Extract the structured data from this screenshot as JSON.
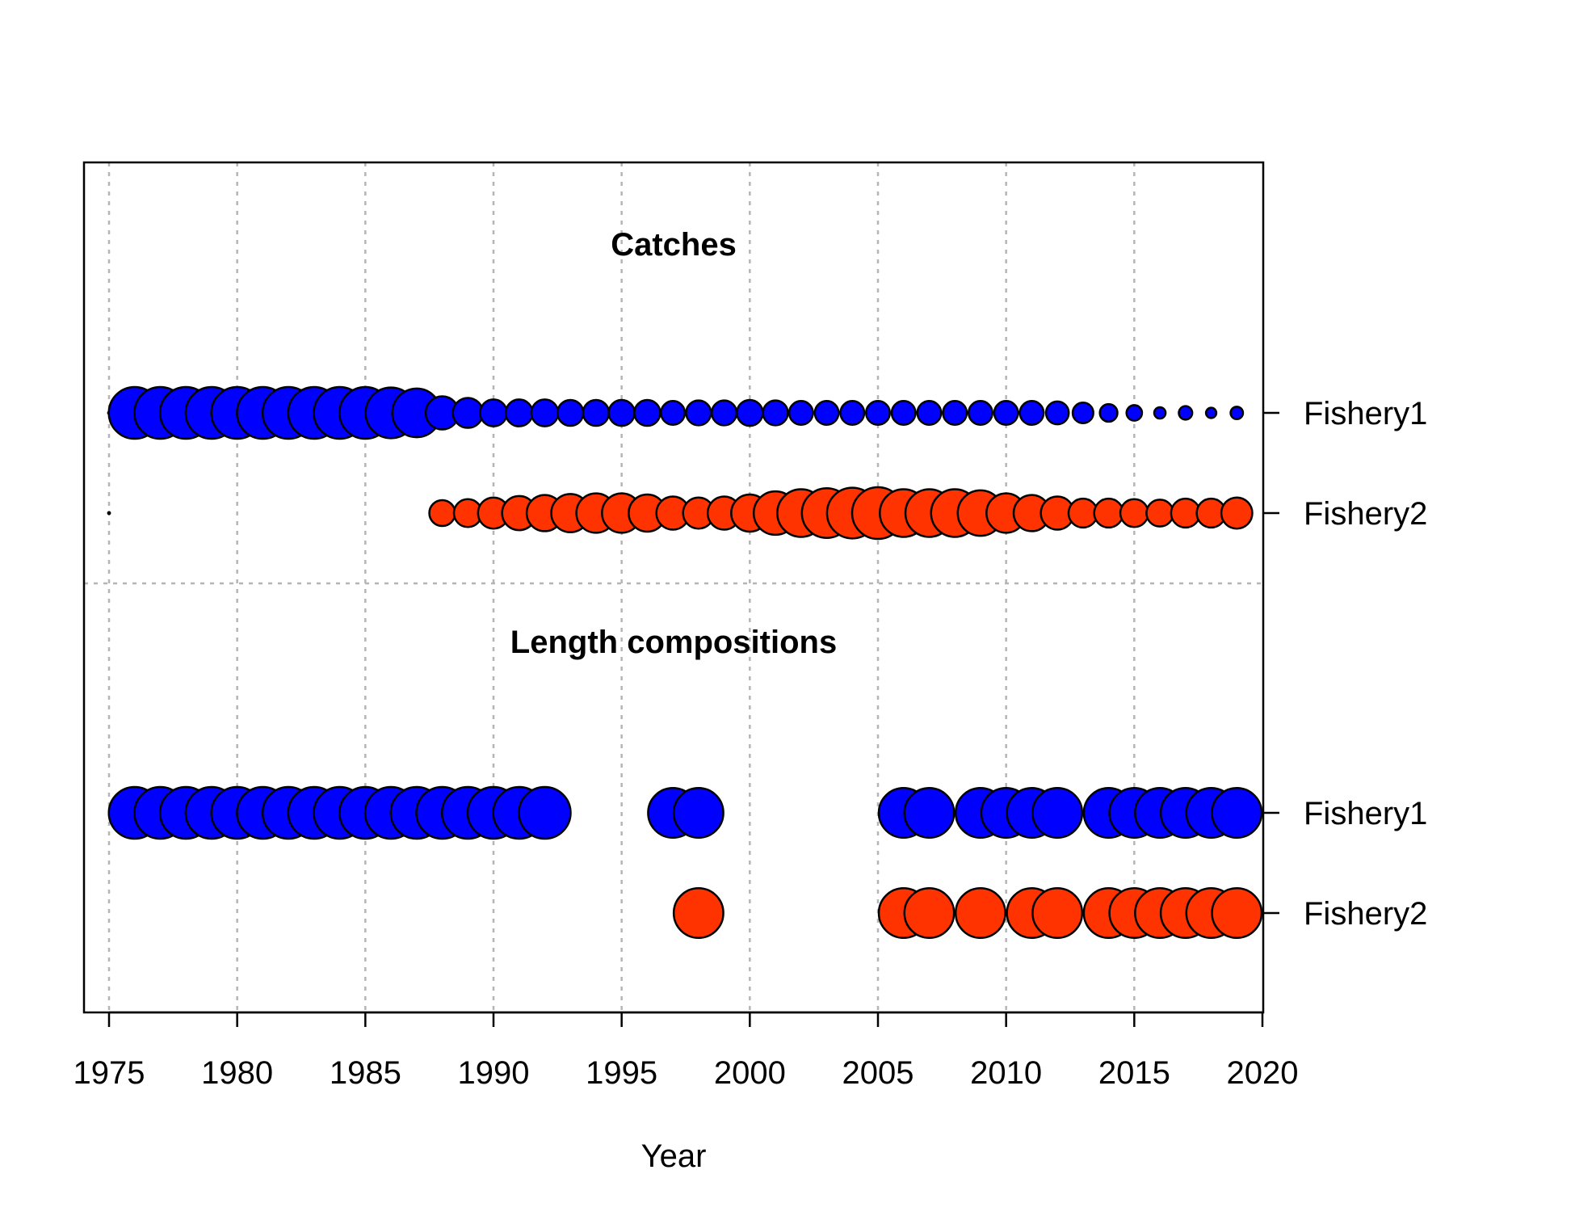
{
  "chart_data": {
    "type": "scatter",
    "subtype": "bubble",
    "xlabel": "Year",
    "xlim": [
      1975,
      2020
    ],
    "x_ticks": [
      "1975",
      "1980",
      "1985",
      "1990",
      "1995",
      "2000",
      "2005",
      "2010",
      "2015",
      "2020"
    ],
    "grid": true,
    "colors": {
      "Fishery1": "#0000ff",
      "Fishery2": "#ff3300"
    },
    "panels": [
      {
        "title": "Catches",
        "rows": [
          {
            "label": "Fishery1",
            "color": "#0000ff",
            "points": [
              {
                "year": 1975,
                "size": 0.02
              },
              {
                "year": 1976,
                "size": 1.0
              },
              {
                "year": 1977,
                "size": 1.0
              },
              {
                "year": 1978,
                "size": 1.0
              },
              {
                "year": 1979,
                "size": 1.0
              },
              {
                "year": 1980,
                "size": 1.0
              },
              {
                "year": 1981,
                "size": 1.0
              },
              {
                "year": 1982,
                "size": 1.0
              },
              {
                "year": 1983,
                "size": 1.0
              },
              {
                "year": 1984,
                "size": 1.0
              },
              {
                "year": 1985,
                "size": 1.0
              },
              {
                "year": 1986,
                "size": 0.98
              },
              {
                "year": 1987,
                "size": 0.94
              },
              {
                "year": 1988,
                "size": 0.64
              },
              {
                "year": 1989,
                "size": 0.58
              },
              {
                "year": 1990,
                "size": 0.52
              },
              {
                "year": 1991,
                "size": 0.52
              },
              {
                "year": 1992,
                "size": 0.52
              },
              {
                "year": 1993,
                "size": 0.5
              },
              {
                "year": 1994,
                "size": 0.5
              },
              {
                "year": 1995,
                "size": 0.5
              },
              {
                "year": 1996,
                "size": 0.5
              },
              {
                "year": 1997,
                "size": 0.46
              },
              {
                "year": 1998,
                "size": 0.48
              },
              {
                "year": 1999,
                "size": 0.48
              },
              {
                "year": 2000,
                "size": 0.5
              },
              {
                "year": 2001,
                "size": 0.48
              },
              {
                "year": 2002,
                "size": 0.46
              },
              {
                "year": 2003,
                "size": 0.46
              },
              {
                "year": 2004,
                "size": 0.46
              },
              {
                "year": 2005,
                "size": 0.46
              },
              {
                "year": 2006,
                "size": 0.46
              },
              {
                "year": 2007,
                "size": 0.46
              },
              {
                "year": 2008,
                "size": 0.46
              },
              {
                "year": 2009,
                "size": 0.46
              },
              {
                "year": 2010,
                "size": 0.46
              },
              {
                "year": 2011,
                "size": 0.46
              },
              {
                "year": 2012,
                "size": 0.44
              },
              {
                "year": 2013,
                "size": 0.4
              },
              {
                "year": 2014,
                "size": 0.34
              },
              {
                "year": 2015,
                "size": 0.3
              },
              {
                "year": 2016,
                "size": 0.22
              },
              {
                "year": 2017,
                "size": 0.26
              },
              {
                "year": 2018,
                "size": 0.2
              },
              {
                "year": 2019,
                "size": 0.24
              }
            ]
          },
          {
            "label": "Fishery2",
            "color": "#ff3300",
            "points": [
              {
                "year": 1975,
                "size": 0.01
              },
              {
                "year": 1988,
                "size": 0.5
              },
              {
                "year": 1989,
                "size": 0.54
              },
              {
                "year": 1990,
                "size": 0.6
              },
              {
                "year": 1991,
                "size": 0.66
              },
              {
                "year": 1992,
                "size": 0.7
              },
              {
                "year": 1993,
                "size": 0.74
              },
              {
                "year": 1994,
                "size": 0.76
              },
              {
                "year": 1995,
                "size": 0.76
              },
              {
                "year": 1996,
                "size": 0.72
              },
              {
                "year": 1997,
                "size": 0.64
              },
              {
                "year": 1998,
                "size": 0.6
              },
              {
                "year": 1999,
                "size": 0.64
              },
              {
                "year": 2000,
                "size": 0.72
              },
              {
                "year": 2001,
                "size": 0.84
              },
              {
                "year": 2002,
                "size": 0.92
              },
              {
                "year": 2003,
                "size": 0.96
              },
              {
                "year": 2004,
                "size": 0.98
              },
              {
                "year": 2005,
                "size": 1.0
              },
              {
                "year": 2006,
                "size": 0.92
              },
              {
                "year": 2007,
                "size": 0.92
              },
              {
                "year": 2008,
                "size": 0.92
              },
              {
                "year": 2009,
                "size": 0.88
              },
              {
                "year": 2010,
                "size": 0.76
              },
              {
                "year": 2011,
                "size": 0.7
              },
              {
                "year": 2012,
                "size": 0.64
              },
              {
                "year": 2013,
                "size": 0.56
              },
              {
                "year": 2014,
                "size": 0.56
              },
              {
                "year": 2015,
                "size": 0.54
              },
              {
                "year": 2016,
                "size": 0.52
              },
              {
                "year": 2017,
                "size": 0.56
              },
              {
                "year": 2018,
                "size": 0.56
              },
              {
                "year": 2019,
                "size": 0.6
              }
            ]
          }
        ]
      },
      {
        "title": "Length compositions",
        "rows": [
          {
            "label": "Fishery1",
            "color": "#0000ff",
            "points": [
              {
                "year": 1976,
                "size": 1.0
              },
              {
                "year": 1977,
                "size": 1.0
              },
              {
                "year": 1978,
                "size": 1.0
              },
              {
                "year": 1979,
                "size": 1.0
              },
              {
                "year": 1980,
                "size": 1.0
              },
              {
                "year": 1981,
                "size": 1.0
              },
              {
                "year": 1982,
                "size": 1.0
              },
              {
                "year": 1983,
                "size": 1.0
              },
              {
                "year": 1984,
                "size": 1.0
              },
              {
                "year": 1985,
                "size": 1.0
              },
              {
                "year": 1986,
                "size": 1.0
              },
              {
                "year": 1987,
                "size": 1.0
              },
              {
                "year": 1988,
                "size": 1.0
              },
              {
                "year": 1989,
                "size": 1.0
              },
              {
                "year": 1990,
                "size": 1.0
              },
              {
                "year": 1991,
                "size": 1.0
              },
              {
                "year": 1992,
                "size": 1.0
              },
              {
                "year": 1997,
                "size": 0.96
              },
              {
                "year": 1998,
                "size": 0.96
              },
              {
                "year": 2006,
                "size": 0.96
              },
              {
                "year": 2007,
                "size": 0.96
              },
              {
                "year": 2009,
                "size": 0.96
              },
              {
                "year": 2010,
                "size": 0.96
              },
              {
                "year": 2011,
                "size": 0.96
              },
              {
                "year": 2012,
                "size": 0.96
              },
              {
                "year": 2014,
                "size": 0.96
              },
              {
                "year": 2015,
                "size": 0.96
              },
              {
                "year": 2016,
                "size": 0.96
              },
              {
                "year": 2017,
                "size": 0.96
              },
              {
                "year": 2018,
                "size": 0.96
              },
              {
                "year": 2019,
                "size": 0.96
              }
            ]
          },
          {
            "label": "Fishery2",
            "color": "#ff3300",
            "points": [
              {
                "year": 1998,
                "size": 0.96
              },
              {
                "year": 2006,
                "size": 0.96
              },
              {
                "year": 2007,
                "size": 0.96
              },
              {
                "year": 2009,
                "size": 0.96
              },
              {
                "year": 2011,
                "size": 0.96
              },
              {
                "year": 2012,
                "size": 0.96
              },
              {
                "year": 2014,
                "size": 0.96
              },
              {
                "year": 2015,
                "size": 0.96
              },
              {
                "year": 2016,
                "size": 0.96
              },
              {
                "year": 2017,
                "size": 0.96
              },
              {
                "year": 2018,
                "size": 0.96
              },
              {
                "year": 2019,
                "size": 0.96
              }
            ]
          }
        ]
      }
    ]
  }
}
